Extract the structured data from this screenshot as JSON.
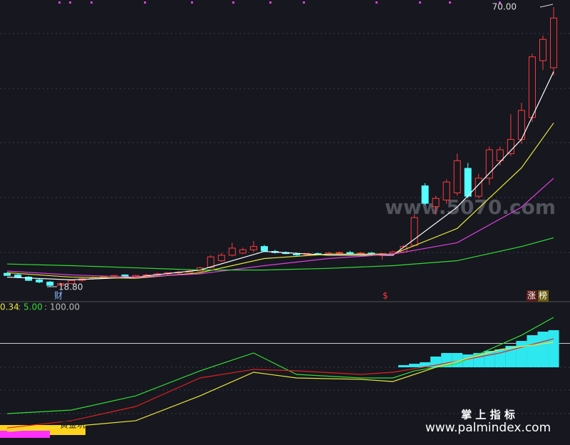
{
  "chart_data": [
    {
      "type": "candlestick",
      "open": [
        21.3,
        21.0,
        20.6,
        20.1,
        19.7,
        19.1,
        19.4,
        20.0,
        20.3,
        20.5,
        20.7,
        21.0,
        20.7,
        20.9,
        21.0,
        21.2,
        21.4,
        21.5,
        21.7,
        22.3,
        23.6,
        24.6,
        25.0,
        25.6,
        26.2,
        25.3,
        25.1,
        24.8,
        24.7,
        24.9,
        24.8,
        25.0,
        25.1,
        24.9,
        25.0,
        24.8,
        24.9,
        25.2,
        26.4,
        37.3,
        33.5,
        34.7,
        36.0,
        40.5,
        35.4,
        38.7,
        41.9,
        43.2,
        45.8,
        49.8,
        60.2,
        58.9
      ],
      "high": [
        21.5,
        21.2,
        20.8,
        20.3,
        19.9,
        19.6,
        20.2,
        20.5,
        20.7,
        20.9,
        21.0,
        21.1,
        21.0,
        21.2,
        21.4,
        21.5,
        21.7,
        21.9,
        22.5,
        24.6,
        25.0,
        26.9,
        26.0,
        27.2,
        26.5,
        25.6,
        25.3,
        25.1,
        25.0,
        25.1,
        25.2,
        25.3,
        25.4,
        25.2,
        25.2,
        25.0,
        25.4,
        26.5,
        32.1,
        37.8,
        35.5,
        38.5,
        43.2,
        41.5,
        39.5,
        44.5,
        44.5,
        50.4,
        52.5,
        61.5,
        64.8,
        70.0
      ],
      "low": [
        20.9,
        20.4,
        19.9,
        19.5,
        18.8,
        19.0,
        19.3,
        19.8,
        20.1,
        20.3,
        20.5,
        20.6,
        20.6,
        20.8,
        20.9,
        21.0,
        21.2,
        21.4,
        21.5,
        22.2,
        23.4,
        24.4,
        24.8,
        25.2,
        25.3,
        24.9,
        24.8,
        24.5,
        24.5,
        24.6,
        24.6,
        24.8,
        24.8,
        24.7,
        24.6,
        23.8,
        24.7,
        25.0,
        26.2,
        33.8,
        32.0,
        34.0,
        35.5,
        35.0,
        35.0,
        37.5,
        41.0,
        42.8,
        45.0,
        49.0,
        58.5,
        57.5
      ],
      "close": [
        20.9,
        20.6,
        20.0,
        19.7,
        19.1,
        19.4,
        20.0,
        20.3,
        20.5,
        20.7,
        20.9,
        20.7,
        20.9,
        21.0,
        21.2,
        21.4,
        21.5,
        21.7,
        22.3,
        24.3,
        24.6,
        25.9,
        25.6,
        26.2,
        25.4,
        25.1,
        24.9,
        24.7,
        24.9,
        24.8,
        25.0,
        25.1,
        24.9,
        25.0,
        24.8,
        24.9,
        25.2,
        26.2,
        31.5,
        34.1,
        35.0,
        38.0,
        41.9,
        35.4,
        38.7,
        43.9,
        43.9,
        45.8,
        51.1,
        60.9,
        64.1,
        68.0
      ],
      "up_color": "#ff3b3b",
      "down_color": "#54ffff",
      "ylim": [
        16.5,
        71.3
      ],
      "series": [
        {
          "color": "#ffffff",
          "x": [
            0,
            6,
            12,
            18,
            24,
            30,
            36,
            42,
            48,
            51
          ],
          "values": [
            20.6,
            20.1,
            20.6,
            21.9,
            25.3,
            24.6,
            24.6,
            33.4,
            45.8,
            58.2
          ]
        },
        {
          "color": "#e8e83a",
          "x": [
            0,
            6,
            12,
            18,
            24,
            30,
            36,
            42,
            48,
            51
          ],
          "values": [
            21.4,
            20.6,
            20.4,
            21.4,
            24.0,
            24.8,
            24.8,
            29.5,
            40.6,
            48.8
          ]
        },
        {
          "color": "#e040e0",
          "x": [
            0,
            6,
            12,
            18,
            24,
            30,
            36,
            42,
            48,
            51
          ],
          "values": [
            21.7,
            21.0,
            20.6,
            21.2,
            22.7,
            24.0,
            24.8,
            26.9,
            33.4,
            38.7
          ]
        },
        {
          "color": "#33dd33",
          "x": [
            0,
            6,
            12,
            18,
            24,
            30,
            36,
            42,
            48,
            51
          ],
          "values": [
            23.0,
            22.7,
            22.3,
            21.9,
            21.9,
            22.2,
            22.7,
            23.6,
            26.2,
            27.8
          ]
        }
      ],
      "annotations": {
        "high": "70.00",
        "low": "18.80",
        "cai": "财",
        "dollar": "$",
        "zhang": "涨",
        "bang": "榜"
      },
      "watermark": "www.5070.com"
    },
    {
      "type": "line",
      "header": [
        "0.34",
        ":",
        "5.00",
        ":",
        "100.00"
      ],
      "ylim": [
        0,
        130
      ],
      "reference": 100,
      "series": [
        {
          "color": "#33dd33",
          "x": [
            0,
            6,
            12,
            18,
            21,
            23,
            27,
            33,
            36,
            38,
            42,
            48,
            51
          ],
          "values": [
            28.9,
            32.5,
            46.9,
            72.2,
            83.1,
            90.3,
            68.6,
            65.0,
            65.0,
            72.2,
            79.4,
            108.3,
            126.4
          ]
        },
        {
          "color": "#e02020",
          "x": [
            0,
            6,
            12,
            18,
            23,
            27,
            33,
            36,
            40,
            46,
            51
          ],
          "values": [
            14.4,
            21.7,
            36.1,
            65.0,
            73.7,
            72.2,
            68.6,
            70.8,
            78.0,
            90.3,
            104.7
          ]
        },
        {
          "color": "#e8e83a",
          "x": [
            0,
            6,
            12,
            18,
            23,
            27,
            33,
            36,
            40,
            46,
            51
          ],
          "values": [
            10.8,
            15.9,
            21.7,
            46.9,
            70.8,
            65.0,
            63.6,
            61.4,
            75.8,
            93.9,
            101.1
          ]
        }
      ],
      "histogram": {
        "color": "#2ee8f0",
        "x": [
          37,
          38,
          39,
          40,
          41,
          42,
          43,
          44,
          45,
          46,
          47,
          48,
          49,
          50,
          51
        ],
        "low": [
          75.8,
          75.8,
          75.8,
          75.8,
          75.8,
          75.8,
          75.8,
          75.8,
          75.8,
          75.8,
          75.8,
          75.8,
          75.8,
          75.8,
          75.8
        ],
        "high": [
          78.0,
          79.4,
          80.9,
          86.7,
          90.3,
          90.3,
          88.8,
          90.3,
          92.4,
          93.9,
          97.5,
          102.5,
          108.3,
          111.9,
          113.4
        ]
      },
      "label": "黄金坑",
      "brand": "掌 上 指 标",
      "site": "www.palmindex.com"
    }
  ]
}
